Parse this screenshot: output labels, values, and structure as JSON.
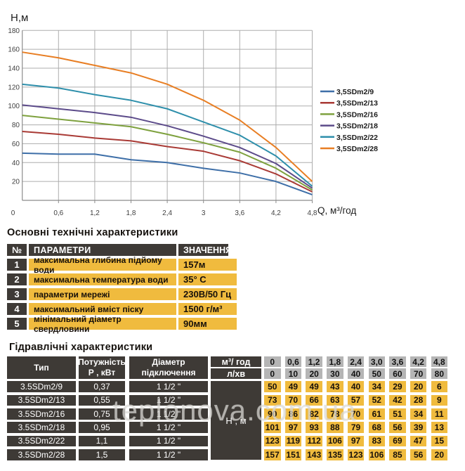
{
  "chart": {
    "ylabel": "Н,м",
    "xlabel": "Q,  м³/год",
    "origin_label": "0",
    "y_ticks": [
      "180",
      "160",
      "140",
      "120",
      "100",
      "80",
      "60",
      "40",
      "20"
    ],
    "x_ticks": [
      "0,6",
      "1,2",
      "1,8",
      "2,4",
      "3",
      "3,6",
      "4,2",
      "4,8"
    ],
    "grid_color": "#adadad",
    "axis_color": "#8c8c8c"
  },
  "chart_data": {
    "type": "line",
    "title": "",
    "xlabel": "Q, м³/год",
    "ylabel": "Н, м",
    "x": [
      0,
      0.6,
      1.2,
      1.8,
      2.4,
      3.0,
      3.6,
      4.2,
      4.8
    ],
    "xlim": [
      0,
      4.8
    ],
    "ylim": [
      0,
      180
    ],
    "grid": true,
    "legend_position": "right",
    "series": [
      {
        "name": "3,5SDm2/9",
        "color": "#3e6fa8",
        "values": [
          50,
          49,
          49,
          43,
          40,
          34,
          29,
          20,
          6
        ]
      },
      {
        "name": "3,5SDm2/13",
        "color": "#a93a35",
        "values": [
          73,
          70,
          66,
          63,
          57,
          52,
          42,
          28,
          9
        ]
      },
      {
        "name": "3,5SDm2/16",
        "color": "#7ea13e",
        "values": [
          90,
          86,
          82,
          78,
          70,
          61,
          51,
          34,
          11
        ]
      },
      {
        "name": "3,5SDm2/18",
        "color": "#5c4b8a",
        "values": [
          101,
          97,
          93,
          88,
          79,
          68,
          56,
          39,
          13
        ]
      },
      {
        "name": "3,5SDm2/22",
        "color": "#2e8fab",
        "values": [
          123,
          119,
          112,
          106,
          97,
          83,
          69,
          47,
          15
        ]
      },
      {
        "name": "3,5SDm2/28",
        "color": "#e87e23",
        "values": [
          157,
          151,
          143,
          135,
          123,
          106,
          85,
          56,
          20
        ]
      }
    ]
  },
  "table1": {
    "title": "Основні технічні характеристики",
    "headers": {
      "num": "№",
      "param": "ПАРАМЕТРИ",
      "value": "ЗНАЧЕННЯ"
    },
    "rows": [
      {
        "num": "1",
        "param": "максимальна глибина підйому води",
        "value": "157м"
      },
      {
        "num": "2",
        "param": "максимальна температура води",
        "value": "35° С"
      },
      {
        "num": "3",
        "param": "параметри мережі",
        "value": "230В/50 Гц"
      },
      {
        "num": "4",
        "param": "максимальний вміст піску",
        "value": "1500 г/м³"
      },
      {
        "num": "5",
        "param": "мінімальний діаметр свердловини",
        "value": "90мм"
      }
    ]
  },
  "table2": {
    "title": "Гідравлічні характеристики",
    "col_headers": {
      "type": "Тип",
      "power_line1": "Потужність",
      "power_line2": "Р , кВт",
      "diameter_line1": "Діаметр",
      "diameter_line2": "підключення",
      "flow_m3": "м³/ год",
      "flow_lmin": "л/хв",
      "head_label": "Н , м"
    },
    "flow_m3_values": [
      "0",
      "0,6",
      "1,2",
      "1,8",
      "2,4",
      "3,0",
      "3,6",
      "4,2",
      "4,8"
    ],
    "flow_lmin_values": [
      "0",
      "10",
      "20",
      "30",
      "40",
      "50",
      "60",
      "70",
      "80"
    ],
    "rows": [
      {
        "type": "3.5SDm2/9",
        "power": "0,37",
        "diameter": "1 1/2 \"",
        "heads": [
          "50",
          "49",
          "49",
          "43",
          "40",
          "34",
          "29",
          "20",
          "6"
        ]
      },
      {
        "type": "3.5SDm2/13",
        "power": "0,55",
        "diameter": "1 1/2 \"",
        "heads": [
          "73",
          "70",
          "66",
          "63",
          "57",
          "52",
          "42",
          "28",
          "9"
        ]
      },
      {
        "type": "3.5SDm2/16",
        "power": "0,75",
        "diameter": "1 1/2 \"",
        "heads": [
          "90",
          "86",
          "82",
          "78",
          "70",
          "61",
          "51",
          "34",
          "11"
        ]
      },
      {
        "type": "3.5SDm2/18",
        "power": "0,95",
        "diameter": "1 1/2 \"",
        "heads": [
          "101",
          "97",
          "93",
          "88",
          "79",
          "68",
          "56",
          "39",
          "13"
        ]
      },
      {
        "type": "3.5SDm2/22",
        "power": "1,1",
        "diameter": "1 1/2 \"",
        "heads": [
          "123",
          "119",
          "112",
          "106",
          "97",
          "83",
          "69",
          "47",
          "15"
        ]
      },
      {
        "type": "3.5SDm2/28",
        "power": "1,5",
        "diameter": "1 1/2 \"",
        "heads": [
          "157",
          "151",
          "143",
          "135",
          "123",
          "106",
          "85",
          "56",
          "20"
        ]
      }
    ]
  },
  "watermark": "teplonova.com.ua",
  "colors": {
    "cell_dark": "#3e3a36",
    "cell_yellow": "#f0bb3e",
    "cell_gray": "#b5b5b5"
  }
}
